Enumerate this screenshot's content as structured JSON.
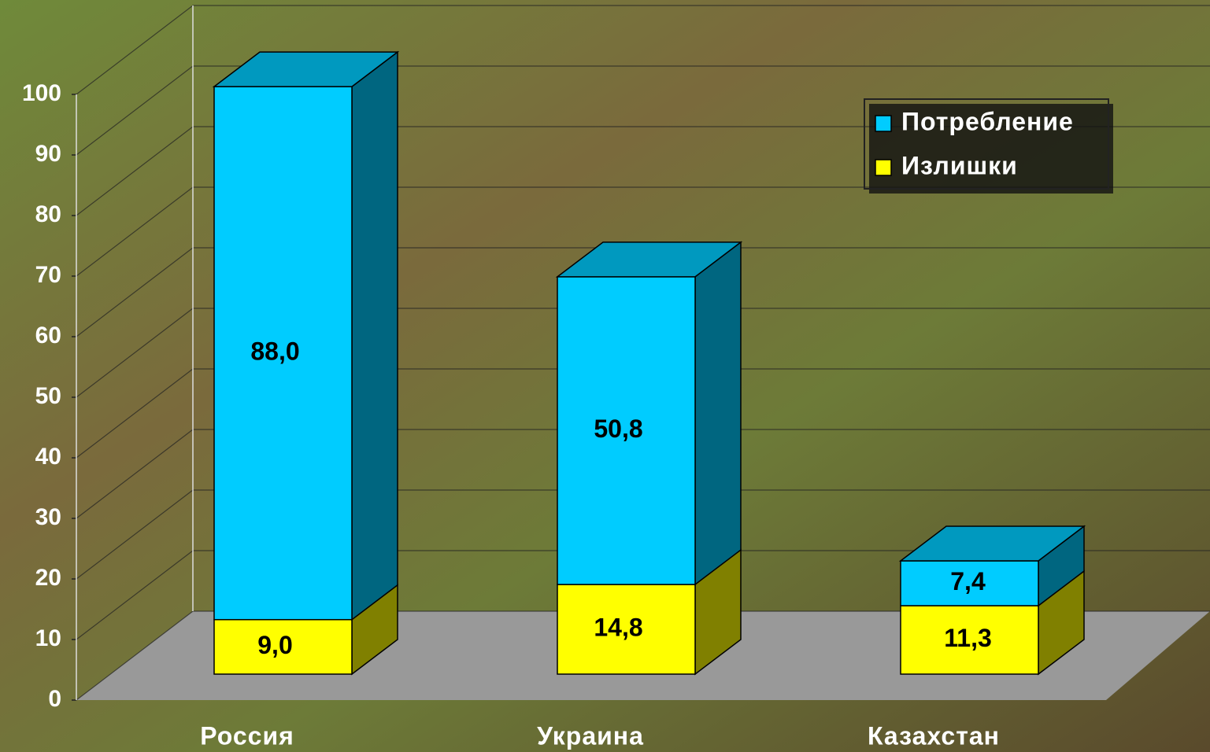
{
  "chart_data": {
    "type": "bar3d_stacked",
    "categories": [
      "Россия",
      "Украина",
      "Казахстан"
    ],
    "series": [
      {
        "name": "Потребление",
        "color": "#00ccff",
        "values": [
          88.0,
          50.8,
          7.4
        ],
        "value_labels": [
          "88,0",
          "50,8",
          "7,4"
        ]
      },
      {
        "name": "Излишки",
        "color": "#ffff00",
        "values": [
          9.0,
          14.8,
          11.3
        ],
        "value_labels": [
          "9,0",
          "14,8",
          "11,3"
        ]
      }
    ],
    "ylim": [
      0,
      100
    ],
    "yticks": [
      0,
      10,
      20,
      30,
      40,
      50,
      60,
      70,
      80,
      90,
      100
    ],
    "grid": true,
    "legend": "upper right"
  }
}
